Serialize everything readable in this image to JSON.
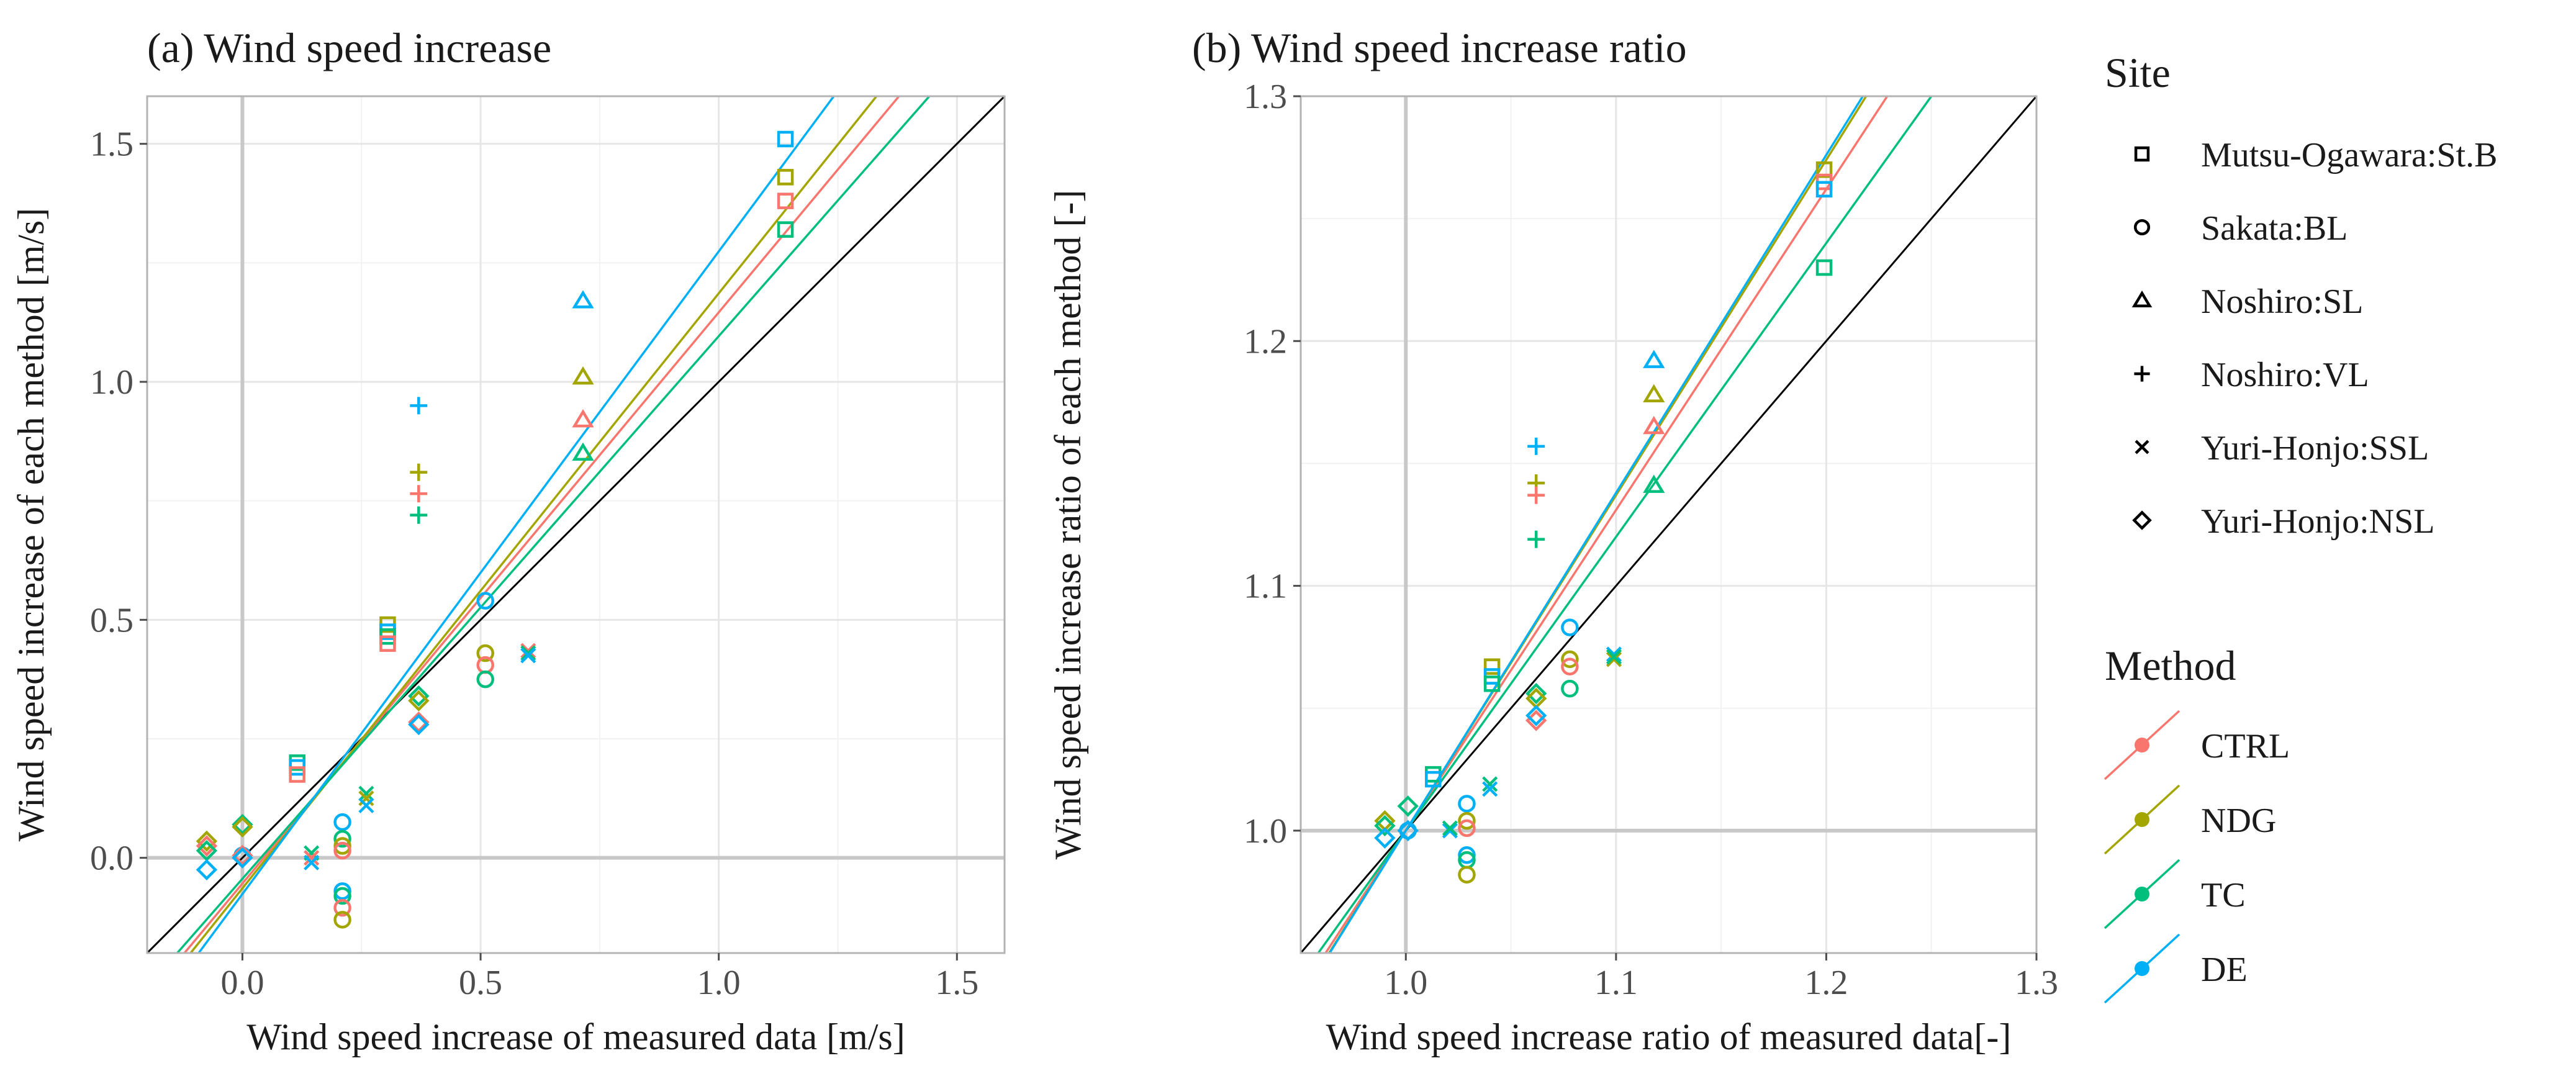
{
  "colors": {
    "CTRL": "#F8766D",
    "NDG": "#A3A500",
    "TC": "#00BF7D",
    "DE": "#00B0F6",
    "identity": "#000000",
    "panel_border": "#b3b3b3",
    "grid_major": "#e6e6e6",
    "grid_minor": "#f2f2f2",
    "zero_line": "#c8c8c8"
  },
  "chart_data": [
    {
      "id": "a",
      "type": "scatter",
      "title": "(a) Wind speed increase",
      "xlabel": "Wind speed increase of measured data [m/s]",
      "ylabel": "Wind speed increase of each method [m/s]",
      "xlim": [
        -0.2,
        1.6
      ],
      "ylim": [
        -0.2,
        1.6
      ],
      "xticks": [
        0.0,
        0.5,
        1.0,
        1.5
      ],
      "yticks": [
        0.0,
        0.5,
        1.0,
        1.5
      ],
      "tick_labels_x": [
        "0.0",
        "0.5",
        "1.0",
        "1.5"
      ],
      "tick_labels_y": [
        "0.0",
        "0.5",
        "1.0",
        "1.5"
      ],
      "zero_lines": [
        0,
        0
      ],
      "identity_line": true,
      "fit_lines": [
        {
          "method": "CTRL",
          "slope": 1.2,
          "intercept": -0.054
        },
        {
          "method": "NDG",
          "slope": 1.25,
          "intercept": -0.064
        },
        {
          "method": "TC",
          "slope": 1.14,
          "intercept": -0.044
        },
        {
          "method": "DE",
          "slope": 1.35,
          "intercept": -0.076
        }
      ],
      "points": [
        {
          "site": "Mutsu-Ogawara:St.B",
          "method": "DE",
          "x": 1.14,
          "y": 1.51
        },
        {
          "site": "Mutsu-Ogawara:St.B",
          "method": "NDG",
          "x": 1.14,
          "y": 1.43
        },
        {
          "site": "Mutsu-Ogawara:St.B",
          "method": "CTRL",
          "x": 1.14,
          "y": 1.38
        },
        {
          "site": "Mutsu-Ogawara:St.B",
          "method": "TC",
          "x": 1.14,
          "y": 1.32
        },
        {
          "site": "Mutsu-Ogawara:St.B",
          "method": "NDG",
          "x": 0.305,
          "y": 0.49
        },
        {
          "site": "Mutsu-Ogawara:St.B",
          "method": "DE",
          "x": 0.305,
          "y": 0.475
        },
        {
          "site": "Mutsu-Ogawara:St.B",
          "method": "TC",
          "x": 0.305,
          "y": 0.465
        },
        {
          "site": "Mutsu-Ogawara:St.B",
          "method": "CTRL",
          "x": 0.305,
          "y": 0.45
        },
        {
          "site": "Mutsu-Ogawara:St.B",
          "method": "TC",
          "x": 0.115,
          "y": 0.2
        },
        {
          "site": "Mutsu-Ogawara:St.B",
          "method": "DE",
          "x": 0.115,
          "y": 0.19
        },
        {
          "site": "Mutsu-Ogawara:St.B",
          "method": "CTRL",
          "x": 0.115,
          "y": 0.175
        },
        {
          "site": "Sakata:BL",
          "method": "DE",
          "x": 0.51,
          "y": 0.54
        },
        {
          "site": "Sakata:BL",
          "method": "NDG",
          "x": 0.51,
          "y": 0.43
        },
        {
          "site": "Sakata:BL",
          "method": "CTRL",
          "x": 0.51,
          "y": 0.405
        },
        {
          "site": "Sakata:BL",
          "method": "TC",
          "x": 0.51,
          "y": 0.375
        },
        {
          "site": "Sakata:BL",
          "method": "DE",
          "x": 0.21,
          "y": 0.075
        },
        {
          "site": "Sakata:BL",
          "method": "TC",
          "x": 0.21,
          "y": 0.04
        },
        {
          "site": "Sakata:BL",
          "method": "NDG",
          "x": 0.21,
          "y": 0.025
        },
        {
          "site": "Sakata:BL",
          "method": "CTRL",
          "x": 0.21,
          "y": 0.015
        },
        {
          "site": "Sakata:BL",
          "method": "DE",
          "x": 0.21,
          "y": -0.07
        },
        {
          "site": "Sakata:BL",
          "method": "TC",
          "x": 0.21,
          "y": -0.08
        },
        {
          "site": "Sakata:BL",
          "method": "CTRL",
          "x": 0.21,
          "y": -0.105
        },
        {
          "site": "Sakata:BL",
          "method": "NDG",
          "x": 0.21,
          "y": -0.13
        },
        {
          "site": "Sakata:BL",
          "method": "DE",
          "x": 0.0,
          "y": 0.005
        },
        {
          "site": "Noshiro:SL",
          "method": "DE",
          "x": 0.715,
          "y": 1.17
        },
        {
          "site": "Noshiro:SL",
          "method": "NDG",
          "x": 0.715,
          "y": 1.01
        },
        {
          "site": "Noshiro:SL",
          "method": "CTRL",
          "x": 0.715,
          "y": 0.92
        },
        {
          "site": "Noshiro:SL",
          "method": "TC",
          "x": 0.715,
          "y": 0.85
        },
        {
          "site": "Noshiro:VL",
          "method": "DE",
          "x": 0.37,
          "y": 0.95
        },
        {
          "site": "Noshiro:VL",
          "method": "NDG",
          "x": 0.37,
          "y": 0.81
        },
        {
          "site": "Noshiro:VL",
          "method": "CTRL",
          "x": 0.37,
          "y": 0.765
        },
        {
          "site": "Noshiro:VL",
          "method": "TC",
          "x": 0.37,
          "y": 0.72
        },
        {
          "site": "Yuri-Honjo:SSL",
          "method": "CTRL",
          "x": 0.6,
          "y": 0.435
        },
        {
          "site": "Yuri-Honjo:SSL",
          "method": "TC",
          "x": 0.6,
          "y": 0.43
        },
        {
          "site": "Yuri-Honjo:SSL",
          "method": "DE",
          "x": 0.6,
          "y": 0.425
        },
        {
          "site": "Yuri-Honjo:SSL",
          "method": "TC",
          "x": 0.26,
          "y": 0.135
        },
        {
          "site": "Yuri-Honjo:SSL",
          "method": "NDG",
          "x": 0.26,
          "y": 0.125
        },
        {
          "site": "Yuri-Honjo:SSL",
          "method": "DE",
          "x": 0.26,
          "y": 0.11
        },
        {
          "site": "Yuri-Honjo:SSL",
          "method": "TC",
          "x": 0.145,
          "y": 0.01
        },
        {
          "site": "Yuri-Honjo:SSL",
          "method": "CTRL",
          "x": 0.145,
          "y": 0.0
        },
        {
          "site": "Yuri-Honjo:SSL",
          "method": "DE",
          "x": 0.145,
          "y": -0.01
        },
        {
          "site": "Yuri-Honjo:NSL",
          "method": "TC",
          "x": 0.37,
          "y": 0.34
        },
        {
          "site": "Yuri-Honjo:NSL",
          "method": "NDG",
          "x": 0.37,
          "y": 0.33
        },
        {
          "site": "Yuri-Honjo:NSL",
          "method": "CTRL",
          "x": 0.37,
          "y": 0.285
        },
        {
          "site": "Yuri-Honjo:NSL",
          "method": "DE",
          "x": 0.37,
          "y": 0.28
        },
        {
          "site": "Yuri-Honjo:NSL",
          "method": "TC",
          "x": 0.0,
          "y": 0.07
        },
        {
          "site": "Yuri-Honjo:NSL",
          "method": "NDG",
          "x": 0.0,
          "y": 0.065
        },
        {
          "site": "Yuri-Honjo:NSL",
          "method": "CTRL",
          "x": 0.0,
          "y": 0.005
        },
        {
          "site": "Yuri-Honjo:NSL",
          "method": "DE",
          "x": 0.0,
          "y": 0.0
        },
        {
          "site": "Yuri-Honjo:NSL",
          "method": "NDG",
          "x": -0.075,
          "y": 0.035
        },
        {
          "site": "Yuri-Honjo:NSL",
          "method": "CTRL",
          "x": -0.075,
          "y": 0.025
        },
        {
          "site": "Yuri-Honjo:NSL",
          "method": "TC",
          "x": -0.075,
          "y": 0.015
        },
        {
          "site": "Yuri-Honjo:NSL",
          "method": "DE",
          "x": -0.075,
          "y": -0.025
        }
      ]
    },
    {
      "id": "b",
      "type": "scatter",
      "title": "(b) Wind speed increase ratio",
      "xlabel": "Wind speed increase ratio of measured data[-]",
      "ylabel": "Wind speed increase ratio of each method [-]",
      "xlim": [
        0.95,
        1.3
      ],
      "ylim": [
        0.95,
        1.3
      ],
      "xticks": [
        1.0,
        1.1,
        1.2,
        1.3
      ],
      "yticks": [
        1.0,
        1.1,
        1.2,
        1.3
      ],
      "tick_labels_x": [
        "1.0",
        "1.1",
        "1.2",
        "1.3"
      ],
      "tick_labels_y": [
        "1.0",
        "1.1",
        "1.2",
        "1.3"
      ],
      "zero_lines": [
        1,
        1
      ],
      "identity_line": true,
      "fit_lines": [
        {
          "method": "CTRL",
          "slope": 1.31,
          "intercept": -0.31
        },
        {
          "method": "NDG",
          "slope": 1.37,
          "intercept": -0.37
        },
        {
          "method": "TC",
          "slope": 1.2,
          "intercept": -0.2
        },
        {
          "method": "DE",
          "slope": 1.38,
          "intercept": -0.38
        }
      ],
      "points": [
        {
          "site": "Mutsu-Ogawara:St.B",
          "method": "NDG",
          "x": 1.199,
          "y": 1.27
        },
        {
          "site": "Mutsu-Ogawara:St.B",
          "method": "CTRL",
          "x": 1.199,
          "y": 1.265
        },
        {
          "site": "Mutsu-Ogawara:St.B",
          "method": "DE",
          "x": 1.199,
          "y": 1.262
        },
        {
          "site": "Mutsu-Ogawara:St.B",
          "method": "TC",
          "x": 1.199,
          "y": 1.23
        },
        {
          "site": "Mutsu-Ogawara:St.B",
          "method": "NDG",
          "x": 1.041,
          "y": 1.067
        },
        {
          "site": "Mutsu-Ogawara:St.B",
          "method": "DE",
          "x": 1.041,
          "y": 1.063
        },
        {
          "site": "Mutsu-Ogawara:St.B",
          "method": "TC",
          "x": 1.041,
          "y": 1.06
        },
        {
          "site": "Mutsu-Ogawara:St.B",
          "method": "TC",
          "x": 1.013,
          "y": 1.023
        },
        {
          "site": "Mutsu-Ogawara:St.B",
          "method": "DE",
          "x": 1.013,
          "y": 1.021
        },
        {
          "site": "Sakata:BL",
          "method": "DE",
          "x": 1.078,
          "y": 1.083
        },
        {
          "site": "Sakata:BL",
          "method": "NDG",
          "x": 1.078,
          "y": 1.07
        },
        {
          "site": "Sakata:BL",
          "method": "CTRL",
          "x": 1.078,
          "y": 1.067
        },
        {
          "site": "Sakata:BL",
          "method": "TC",
          "x": 1.078,
          "y": 1.058
        },
        {
          "site": "Sakata:BL",
          "method": "DE",
          "x": 1.029,
          "y": 1.011
        },
        {
          "site": "Sakata:BL",
          "method": "NDG",
          "x": 1.029,
          "y": 1.004
        },
        {
          "site": "Sakata:BL",
          "method": "CTRL",
          "x": 1.029,
          "y": 1.001
        },
        {
          "site": "Sakata:BL",
          "method": "DE",
          "x": 1.029,
          "y": 0.99
        },
        {
          "site": "Sakata:BL",
          "method": "TC",
          "x": 1.029,
          "y": 0.988
        },
        {
          "site": "Sakata:BL",
          "method": "NDG",
          "x": 1.029,
          "y": 0.982
        },
        {
          "site": "Sakata:BL",
          "method": "DE",
          "x": 1.001,
          "y": 1.0
        },
        {
          "site": "Noshiro:SL",
          "method": "DE",
          "x": 1.118,
          "y": 1.192
        },
        {
          "site": "Noshiro:SL",
          "method": "NDG",
          "x": 1.118,
          "y": 1.178
        },
        {
          "site": "Noshiro:SL",
          "method": "CTRL",
          "x": 1.118,
          "y": 1.165
        },
        {
          "site": "Noshiro:SL",
          "method": "TC",
          "x": 1.118,
          "y": 1.141
        },
        {
          "site": "Noshiro:VL",
          "method": "DE",
          "x": 1.062,
          "y": 1.157
        },
        {
          "site": "Noshiro:VL",
          "method": "NDG",
          "x": 1.062,
          "y": 1.142
        },
        {
          "site": "Noshiro:VL",
          "method": "CTRL",
          "x": 1.062,
          "y": 1.137
        },
        {
          "site": "Noshiro:VL",
          "method": "TC",
          "x": 1.062,
          "y": 1.119
        },
        {
          "site": "Yuri-Honjo:SSL",
          "method": "DE",
          "x": 1.099,
          "y": 1.072
        },
        {
          "site": "Yuri-Honjo:SSL",
          "method": "NDG",
          "x": 1.099,
          "y": 1.07
        },
        {
          "site": "Yuri-Honjo:SSL",
          "method": "TC",
          "x": 1.099,
          "y": 1.071
        },
        {
          "site": "Yuri-Honjo:SSL",
          "method": "TC",
          "x": 1.04,
          "y": 1.019
        },
        {
          "site": "Yuri-Honjo:SSL",
          "method": "DE",
          "x": 1.04,
          "y": 1.017
        },
        {
          "site": "Yuri-Honjo:SSL",
          "method": "DE",
          "x": 1.021,
          "y": 1.0
        },
        {
          "site": "Yuri-Honjo:SSL",
          "method": "TC",
          "x": 1.021,
          "y": 1.001
        },
        {
          "site": "Yuri-Honjo:NSL",
          "method": "TC",
          "x": 1.062,
          "y": 1.056
        },
        {
          "site": "Yuri-Honjo:NSL",
          "method": "NDG",
          "x": 1.062,
          "y": 1.054
        },
        {
          "site": "Yuri-Honjo:NSL",
          "method": "CTRL",
          "x": 1.062,
          "y": 1.045
        },
        {
          "site": "Yuri-Honjo:NSL",
          "method": "DE",
          "x": 1.062,
          "y": 1.047
        },
        {
          "site": "Yuri-Honjo:NSL",
          "method": "TC",
          "x": 1.001,
          "y": 1.01
        },
        {
          "site": "Yuri-Honjo:NSL",
          "method": "CTRL",
          "x": 1.001,
          "y": 1.0
        },
        {
          "site": "Yuri-Honjo:NSL",
          "method": "DE",
          "x": 1.001,
          "y": 1.0
        },
        {
          "site": "Yuri-Honjo:NSL",
          "method": "NDG",
          "x": 0.99,
          "y": 1.004
        },
        {
          "site": "Yuri-Honjo:NSL",
          "method": "TC",
          "x": 0.99,
          "y": 1.002
        },
        {
          "site": "Yuri-Honjo:NSL",
          "method": "DE",
          "x": 0.99,
          "y": 0.997
        }
      ]
    }
  ],
  "legend": {
    "site_title": "Site",
    "sites": [
      {
        "label": "Mutsu-Ogawara:St.B",
        "shape": "square"
      },
      {
        "label": "Sakata:BL",
        "shape": "circle"
      },
      {
        "label": "Noshiro:SL",
        "shape": "triangle"
      },
      {
        "label": "Noshiro:VL",
        "shape": "plus"
      },
      {
        "label": "Yuri-Honjo:SSL",
        "shape": "cross"
      },
      {
        "label": "Yuri-Honjo:NSL",
        "shape": "diamond"
      }
    ],
    "method_title": "Method",
    "methods": [
      {
        "label": "CTRL"
      },
      {
        "label": "NDG"
      },
      {
        "label": "TC"
      },
      {
        "label": "DE"
      }
    ]
  }
}
